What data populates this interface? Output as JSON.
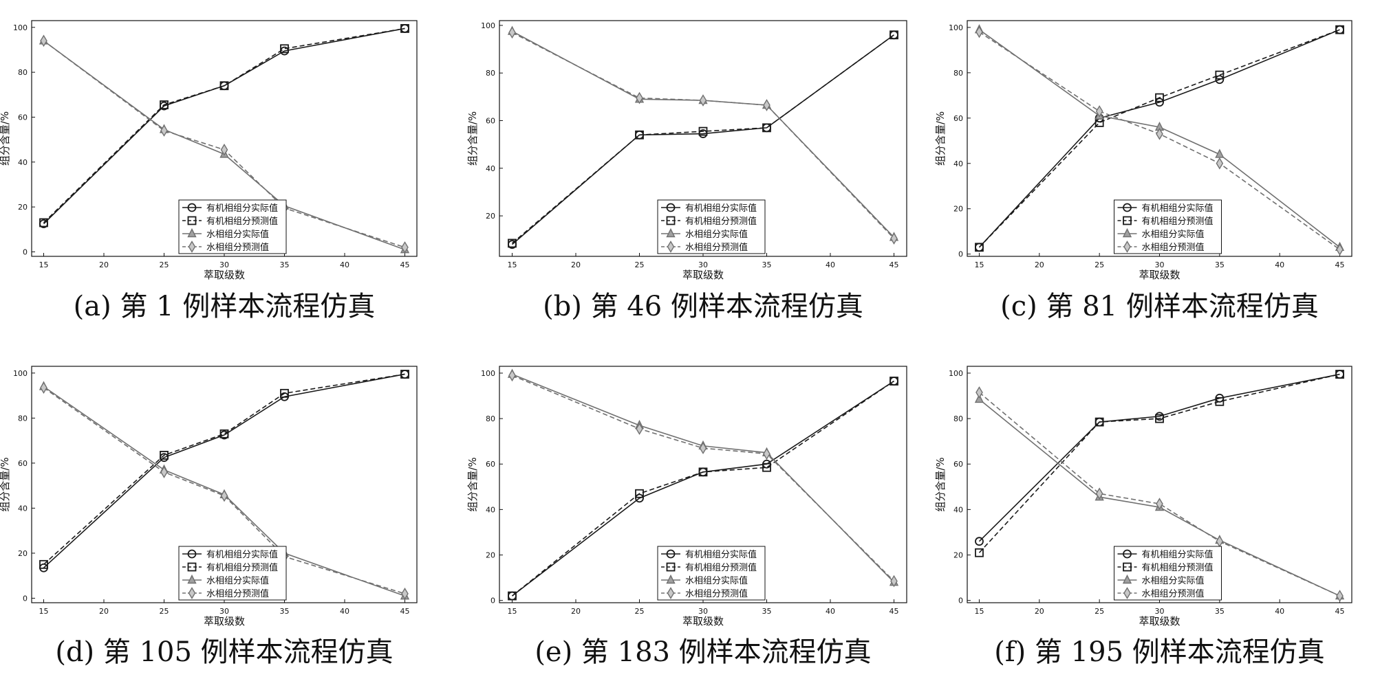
{
  "legend_labels": [
    "有机相组分实际值",
    "有机相组分预测值",
    "水相组分实际值",
    "水相组分预测值"
  ],
  "xlabel": "萃取级数",
  "ylabel": "组分含量/%",
  "chart_data": [
    {
      "type": "line",
      "caption": "(a) 第 1 例样本流程仿真",
      "x": [
        15,
        25,
        30,
        35,
        45
      ],
      "xlim": [
        14,
        46
      ],
      "ylim": [
        -2,
        103
      ],
      "xticks": [
        15,
        20,
        25,
        30,
        35,
        40,
        45
      ],
      "yticks": [
        0,
        20,
        40,
        60,
        80,
        100
      ],
      "grid": false,
      "legend_position": "bottom-center",
      "series": [
        {
          "name": "有机相组分实际值",
          "marker": "circle",
          "dash": "solid",
          "color": "#1a1a1a",
          "values": [
            12.5,
            65,
            74,
            89.5,
            99.5
          ]
        },
        {
          "name": "有机相组分预测值",
          "marker": "square",
          "dash": "dashed",
          "color": "#1a1a1a",
          "values": [
            13,
            65.5,
            74,
            90.5,
            99.5
          ]
        },
        {
          "name": "水相组分实际值",
          "marker": "triangle",
          "dash": "solid",
          "color": "#707070",
          "values": [
            94,
            54.5,
            43.5,
            20.5,
            1
          ]
        },
        {
          "name": "水相组分预测值",
          "marker": "diamond",
          "dash": "dashed",
          "color": "#707070",
          "values": [
            94,
            54,
            45.5,
            19.5,
            2
          ]
        }
      ]
    },
    {
      "type": "line",
      "caption": "(b) 第 46 例样本流程仿真",
      "x": [
        15,
        25,
        30,
        35,
        45
      ],
      "xlim": [
        14,
        46
      ],
      "ylim": [
        3,
        102
      ],
      "xticks": [
        15,
        20,
        25,
        30,
        35,
        40,
        45
      ],
      "yticks": [
        20,
        40,
        60,
        80,
        100
      ],
      "grid": false,
      "legend_position": "bottom-center",
      "series": [
        {
          "name": "有机相组分实际值",
          "marker": "circle",
          "dash": "solid",
          "color": "#1a1a1a",
          "values": [
            8,
            54,
            54.5,
            57,
            96
          ]
        },
        {
          "name": "有机相组分预测值",
          "marker": "square",
          "dash": "dashed",
          "color": "#1a1a1a",
          "values": [
            8.5,
            54,
            55.5,
            57,
            96
          ]
        },
        {
          "name": "水相组分实际值",
          "marker": "triangle",
          "dash": "solid",
          "color": "#707070",
          "values": [
            97.5,
            69,
            68.5,
            66.5,
            11
          ]
        },
        {
          "name": "水相组分预测值",
          "marker": "diamond",
          "dash": "dashed",
          "color": "#707070",
          "values": [
            97,
            69.5,
            68.5,
            66.5,
            10.5
          ]
        }
      ]
    },
    {
      "type": "line",
      "caption": "(c) 第 81 例样本流程仿真",
      "x": [
        15,
        25,
        30,
        35,
        45
      ],
      "xlim": [
        14,
        46
      ],
      "ylim": [
        -1,
        103
      ],
      "xticks": [
        15,
        20,
        25,
        30,
        35,
        40,
        45
      ],
      "yticks": [
        0,
        20,
        40,
        60,
        80,
        100
      ],
      "grid": false,
      "legend_position": "bottom-center",
      "series": [
        {
          "name": "有机相组分实际值",
          "marker": "circle",
          "dash": "solid",
          "color": "#1a1a1a",
          "values": [
            3,
            60,
            67,
            77,
            99
          ]
        },
        {
          "name": "有机相组分预测值",
          "marker": "square",
          "dash": "dashed",
          "color": "#1a1a1a",
          "values": [
            3,
            58,
            69,
            79,
            99
          ]
        },
        {
          "name": "水相组分实际值",
          "marker": "triangle",
          "dash": "solid",
          "color": "#707070",
          "values": [
            99,
            61,
            56,
            44,
            3
          ]
        },
        {
          "name": "水相组分预测值",
          "marker": "diamond",
          "dash": "dashed",
          "color": "#707070",
          "values": [
            98,
            63,
            53,
            40,
            2
          ]
        }
      ]
    },
    {
      "type": "line",
      "caption": "(d) 第 105 例样本流程仿真",
      "x": [
        15,
        25,
        30,
        35,
        45
      ],
      "xlim": [
        14,
        46
      ],
      "ylim": [
        -2,
        103
      ],
      "xticks": [
        15,
        20,
        25,
        30,
        35,
        40,
        45
      ],
      "yticks": [
        0,
        20,
        40,
        60,
        80,
        100
      ],
      "grid": false,
      "legend_position": "bottom-center",
      "series": [
        {
          "name": "有机相组分实际值",
          "marker": "circle",
          "dash": "solid",
          "color": "#1a1a1a",
          "values": [
            13.5,
            62.5,
            72.5,
            89.5,
            99.5
          ]
        },
        {
          "name": "有机相组分预测值",
          "marker": "square",
          "dash": "dashed",
          "color": "#1a1a1a",
          "values": [
            15,
            63.5,
            73,
            91,
            99.5
          ]
        },
        {
          "name": "水相组分实际值",
          "marker": "triangle",
          "dash": "solid",
          "color": "#707070",
          "values": [
            94,
            57,
            46,
            20,
            1
          ]
        },
        {
          "name": "水相组分预测值",
          "marker": "diamond",
          "dash": "dashed",
          "color": "#707070",
          "values": [
            93.5,
            56,
            45.5,
            18.5,
            2
          ]
        }
      ]
    },
    {
      "type": "line",
      "caption": "(e) 第 183 例样本流程仿真",
      "x": [
        15,
        25,
        30,
        35,
        45
      ],
      "xlim": [
        14,
        46
      ],
      "ylim": [
        -1,
        103
      ],
      "xticks": [
        15,
        20,
        25,
        30,
        35,
        40,
        45
      ],
      "yticks": [
        0,
        20,
        40,
        60,
        80,
        100
      ],
      "grid": false,
      "legend_position": "bottom-center",
      "series": [
        {
          "name": "有机相组分实际值",
          "marker": "circle",
          "dash": "solid",
          "color": "#1a1a1a",
          "values": [
            2,
            45,
            56.5,
            60,
            96.5
          ]
        },
        {
          "name": "有机相组分预测值",
          "marker": "square",
          "dash": "dashed",
          "color": "#1a1a1a",
          "values": [
            2,
            47,
            56.5,
            58.5,
            96.5
          ]
        },
        {
          "name": "水相组分实际值",
          "marker": "triangle",
          "dash": "solid",
          "color": "#707070",
          "values": [
            99.5,
            77,
            68,
            65,
            8
          ]
        },
        {
          "name": "水相组分预测值",
          "marker": "diamond",
          "dash": "dashed",
          "color": "#707070",
          "values": [
            99,
            75.5,
            67,
            64.5,
            8.5
          ]
        }
      ]
    },
    {
      "type": "line",
      "caption": "(f) 第 195 例样本流程仿真",
      "x": [
        15,
        25,
        30,
        35,
        45
      ],
      "xlim": [
        14,
        46
      ],
      "ylim": [
        -1,
        103
      ],
      "xticks": [
        15,
        20,
        25,
        30,
        35,
        40,
        45
      ],
      "yticks": [
        0,
        20,
        40,
        60,
        80,
        100
      ],
      "grid": false,
      "legend_position": "bottom-center",
      "series": [
        {
          "name": "有机相组分实际值",
          "marker": "circle",
          "dash": "solid",
          "color": "#1a1a1a",
          "values": [
            26,
            78.5,
            81,
            89,
            99.5
          ]
        },
        {
          "name": "有机相组分预测值",
          "marker": "square",
          "dash": "dashed",
          "color": "#1a1a1a",
          "values": [
            21,
            78.5,
            80,
            87.5,
            99.5
          ]
        },
        {
          "name": "水相组分实际值",
          "marker": "triangle",
          "dash": "solid",
          "color": "#707070",
          "values": [
            88.5,
            45.5,
            41,
            26.5,
            2
          ]
        },
        {
          "name": "水相组分预测值",
          "marker": "diamond",
          "dash": "dashed",
          "color": "#707070",
          "values": [
            91.5,
            47,
            42.5,
            26,
            2
          ]
        }
      ]
    }
  ]
}
